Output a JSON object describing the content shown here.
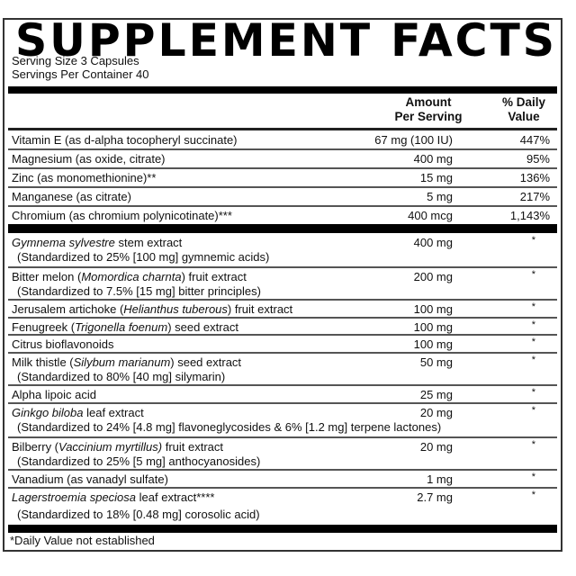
{
  "title": "SUPPLEMENT FACTS",
  "serving_size": "Serving Size 3 Capsules",
  "servings_per_container": "Servings Per Container 40",
  "header": {
    "amount_line1": "Amount",
    "amount_line2": "Per Serving",
    "dv_line1": "% Daily",
    "dv_line2": "Value"
  },
  "nutrients": [
    {
      "name": [
        {
          "t": "Vitamin E (as d-alpha tocopheryl succinate)",
          "i": false
        }
      ],
      "amount": "67 mg (100 IU)",
      "dv": "447%"
    },
    {
      "name": [
        {
          "t": "Magnesium (as oxide, citrate)",
          "i": false
        }
      ],
      "amount": "400 mg",
      "dv": "95%"
    },
    {
      "name": [
        {
          "t": "Zinc (as monomethionine)**",
          "i": false
        }
      ],
      "amount": "15 mg",
      "dv": "136%"
    },
    {
      "name": [
        {
          "t": "Manganese (as citrate)",
          "i": false
        }
      ],
      "amount": "5 mg",
      "dv": "217%"
    },
    {
      "name": [
        {
          "t": "Chromium (as chromium polynicotinate)***",
          "i": false
        }
      ],
      "amount": "400 mcg",
      "dv": "1,143%"
    }
  ],
  "other_ingredients": [
    {
      "name": [
        {
          "t": "Gymnema sylvestre",
          "i": true
        },
        {
          "t": " stem extract",
          "i": false
        }
      ],
      "sub": "(Standardized to 25% [100 mg] gymnemic acids)",
      "amount": "400 mg",
      "dv": "*"
    },
    {
      "name": [
        {
          "t": "Bitter melon (",
          "i": false
        },
        {
          "t": "Momordica charnta",
          "i": true
        },
        {
          "t": ") fruit extract",
          "i": false
        }
      ],
      "sub": "(Standardized to 7.5% [15 mg] bitter principles)",
      "amount": "200 mg",
      "dv": "*"
    },
    {
      "name": [
        {
          "t": "Jerusalem artichoke (",
          "i": false
        },
        {
          "t": "Helianthus tuberous",
          "i": true
        },
        {
          "t": ") fruit extract",
          "i": false
        }
      ],
      "amount": "100 mg",
      "dv": "*"
    },
    {
      "name": [
        {
          "t": "Fenugreek (",
          "i": false
        },
        {
          "t": "Trigonella foenum",
          "i": true
        },
        {
          "t": ") seed extract",
          "i": false
        }
      ],
      "amount": "100 mg",
      "dv": "*"
    },
    {
      "name": [
        {
          "t": "Citrus bioflavonoids",
          "i": false
        }
      ],
      "amount": "100 mg",
      "dv": "*"
    },
    {
      "name": [
        {
          "t": "Milk thistle (",
          "i": false
        },
        {
          "t": "Silybum marianum",
          "i": true
        },
        {
          "t": ") seed extract",
          "i": false
        }
      ],
      "sub": "(Standardized to 80% [40 mg] silymarin)",
      "amount": "50 mg",
      "dv": "*"
    },
    {
      "name": [
        {
          "t": "Alpha lipoic acid",
          "i": false
        }
      ],
      "amount": "25 mg",
      "dv": "*"
    },
    {
      "name": [
        {
          "t": "Ginkgo biloba",
          "i": true
        },
        {
          "t": " leaf extract",
          "i": false
        }
      ],
      "sub": "(Standardized to 24% [4.8 mg] flavoneglycosides & 6% [1.2 mg] terpene lactones)",
      "amount": "20 mg",
      "dv": "*"
    },
    {
      "name": [
        {
          "t": "Bilberry (",
          "i": false
        },
        {
          "t": "Vaccinium myrtillus)",
          "i": true
        },
        {
          "t": " fruit extract",
          "i": false
        }
      ],
      "sub": "(Standardized to 25% [5 mg] anthocyanosides)",
      "amount": "20 mg",
      "dv": "*"
    },
    {
      "name": [
        {
          "t": "Vanadium (as vanadyl sulfate)",
          "i": false
        }
      ],
      "amount": "1 mg",
      "dv": "*"
    },
    {
      "name": [
        {
          "t": "Lagerstroemia speciosa",
          "i": true
        },
        {
          "t": " leaf extract****",
          "i": false
        }
      ],
      "sub": "(Standardized to 18% [0.48 mg] corosolic acid)",
      "amount": "2.7 mg",
      "dv": "*"
    }
  ],
  "footnote": "*Daily Value not established"
}
